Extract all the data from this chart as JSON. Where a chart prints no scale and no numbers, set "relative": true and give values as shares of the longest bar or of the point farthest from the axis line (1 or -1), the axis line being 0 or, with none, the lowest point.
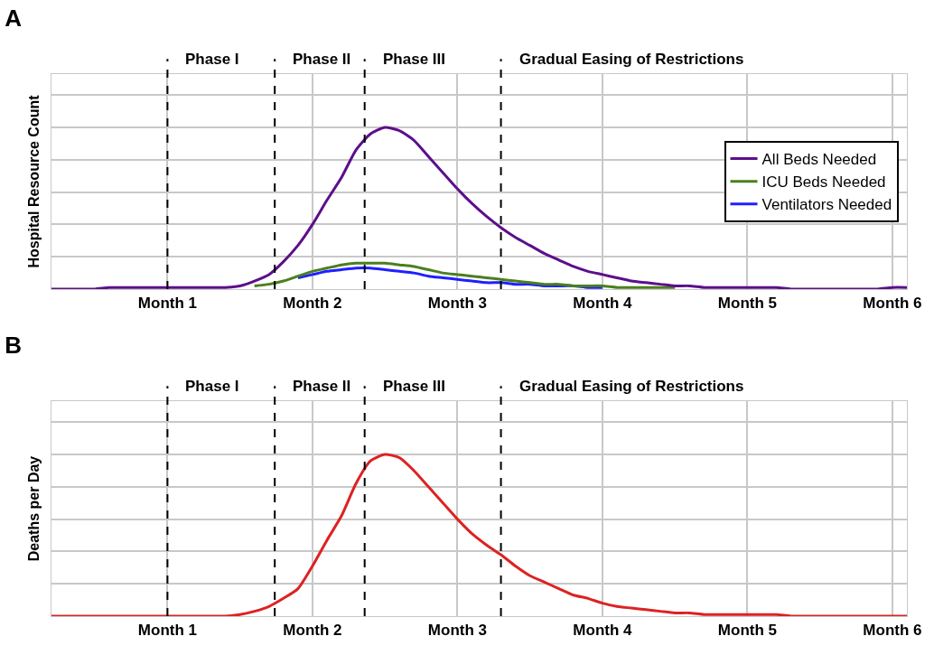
{
  "chart_data": [
    {
      "type": "line",
      "title": "A",
      "ylabel": "Hospital Resource Count",
      "relative": true,
      "categories": [
        null,
        null,
        null,
        null,
        null,
        null,
        null,
        null,
        "Month 1",
        null,
        null,
        null,
        null,
        null,
        null,
        null,
        null,
        null,
        "Month 2",
        null,
        null,
        null,
        null,
        null,
        null,
        null,
        null,
        null,
        "Month 3",
        null,
        null,
        null,
        null,
        null,
        null,
        null,
        null,
        null,
        "Month 4",
        null,
        null,
        null,
        null,
        null,
        null,
        null,
        null,
        null,
        "Month 5",
        null,
        null,
        null,
        null,
        null,
        null,
        null,
        null,
        null,
        "Month 6",
        null
      ],
      "grid": true,
      "legend": "right",
      "marker": "none",
      "line_style": "solid",
      "annotations": [
        "Phase I",
        "Phase II",
        "Phase III",
        "Gradual Easing of Restrictions"
      ],
      "series": [
        {
          "name": "All Beds Needed",
          "color": "#5c0f8b",
          "values": [
            0,
            0,
            0,
            0,
            0.01,
            0.01,
            0.01,
            0.01,
            0.01,
            0.01,
            0.01,
            0.01,
            0.01,
            0.02,
            0.05,
            0.09,
            0.17,
            0.27,
            0.4,
            0.55,
            0.69,
            0.86,
            0.96,
            1,
            0.98,
            0.92,
            0.82,
            0.72,
            0.62,
            0.53,
            0.45,
            0.38,
            0.32,
            0.27,
            0.22,
            0.18,
            0.14,
            0.11,
            0.09,
            0.07,
            0.05,
            0.04,
            0.03,
            0.02,
            0.02,
            0.01,
            0.01,
            0.01,
            0.01,
            0.01,
            0.01,
            0,
            0,
            0,
            0,
            0,
            0,
            0,
            0.01,
            0.01
          ]
        },
        {
          "name": "ICU Beds Needed",
          "color": "#4a7f1f",
          "values": [
            null,
            null,
            null,
            null,
            null,
            null,
            null,
            null,
            null,
            null,
            null,
            null,
            null,
            null,
            0.02,
            0.03,
            0.05,
            0.08,
            0.11,
            0.13,
            0.15,
            0.16,
            0.16,
            0.16,
            0.15,
            0.14,
            0.12,
            0.1,
            0.09,
            0.08,
            0.07,
            0.06,
            0.05,
            0.04,
            0.03,
            0.03,
            0.02,
            0.02,
            0.02,
            0.01,
            0.01,
            0.01,
            0.01,
            0.01,
            null,
            null,
            null,
            null,
            null,
            null,
            null,
            null,
            null,
            null,
            null,
            null,
            null,
            null,
            null,
            null
          ]
        },
        {
          "name": "Ventilators Needed",
          "color": "#1f1fff",
          "values": [
            null,
            null,
            null,
            null,
            null,
            null,
            null,
            null,
            null,
            null,
            null,
            null,
            null,
            null,
            null,
            null,
            null,
            0.07,
            0.09,
            0.11,
            0.12,
            0.13,
            0.13,
            0.12,
            0.11,
            0.1,
            0.08,
            0.07,
            0.06,
            0.05,
            0.04,
            0.04,
            0.03,
            0.03,
            0.02,
            0.02,
            0.02,
            0.01,
            0.01,
            null,
            null,
            null,
            null,
            null,
            null,
            null,
            null,
            null,
            null,
            null,
            null,
            null,
            null,
            null,
            null,
            null,
            null,
            null,
            null,
            null
          ]
        }
      ]
    },
    {
      "type": "line",
      "title": "B",
      "ylabel": "Deaths per Day",
      "relative": true,
      "categories": [
        null,
        null,
        null,
        null,
        null,
        null,
        null,
        null,
        "Month 1",
        null,
        null,
        null,
        null,
        null,
        null,
        null,
        null,
        null,
        "Month 2",
        null,
        null,
        null,
        null,
        null,
        null,
        null,
        null,
        null,
        "Month 3",
        null,
        null,
        null,
        null,
        null,
        null,
        null,
        null,
        null,
        "Month 4",
        null,
        null,
        null,
        null,
        null,
        null,
        null,
        null,
        null,
        "Month 5",
        null,
        null,
        null,
        null,
        null,
        null,
        null,
        null,
        null,
        "Month 6",
        null
      ],
      "grid": true,
      "marker": "none",
      "line_style": "solid",
      "annotations": [
        "Phase I",
        "Phase II",
        "Phase III",
        "Gradual Easing of Restrictions"
      ],
      "series": [
        {
          "color": "#dd2222",
          "values": [
            0,
            0,
            0,
            0,
            0,
            0,
            0,
            0,
            0,
            0,
            0,
            0,
            0,
            0.01,
            0.03,
            0.06,
            0.11,
            0.17,
            0.31,
            0.47,
            0.62,
            0.82,
            0.96,
            1,
            0.98,
            0.9,
            0.8,
            0.7,
            0.6,
            0.51,
            0.44,
            0.38,
            0.31,
            0.25,
            0.21,
            0.17,
            0.13,
            0.11,
            0.08,
            0.06,
            0.05,
            0.04,
            0.03,
            0.02,
            0.02,
            0.01,
            0.01,
            0.01,
            0.01,
            0.01,
            0.01,
            0,
            0,
            0,
            0,
            0,
            0,
            0,
            0,
            0
          ]
        }
      ]
    }
  ]
}
